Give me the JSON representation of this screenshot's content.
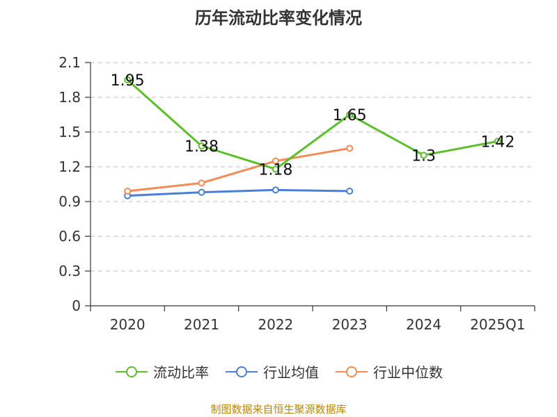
{
  "title": "历年流动比率变化情况",
  "footer": "制图数据来自恒生聚源数据库",
  "colors": {
    "liudong": "#5cbf2a",
    "avg": "#4a7fd8",
    "median": "#f58a55",
    "axis": "#333333",
    "grid": "#cccccc"
  },
  "chart_data": {
    "type": "line",
    "categories": [
      "2020",
      "2021",
      "2022",
      "2023",
      "2024",
      "2025Q1"
    ],
    "ylim": [
      0,
      2.1
    ],
    "yticks": [
      "0",
      "0.3",
      "0.6",
      "0.9",
      "1.2",
      "1.5",
      "1.8",
      "2.1"
    ],
    "grid": true,
    "legend_position": "bottom",
    "series": [
      {
        "name": "流动比率",
        "color_key": "liudong",
        "values": [
          1.95,
          1.38,
          1.18,
          1.65,
          1.3,
          1.42
        ],
        "labels": [
          "1.95",
          "1.38",
          "1.18",
          "1.65",
          "1.3",
          "1.42"
        ],
        "show_labels": true
      },
      {
        "name": "行业均值",
        "color_key": "avg",
        "values": [
          0.95,
          0.98,
          1.0,
          0.99,
          null,
          null
        ],
        "show_labels": false
      },
      {
        "name": "行业中位数",
        "color_key": "median",
        "values": [
          0.99,
          1.06,
          1.25,
          1.36,
          null,
          null
        ],
        "show_labels": false
      }
    ]
  }
}
